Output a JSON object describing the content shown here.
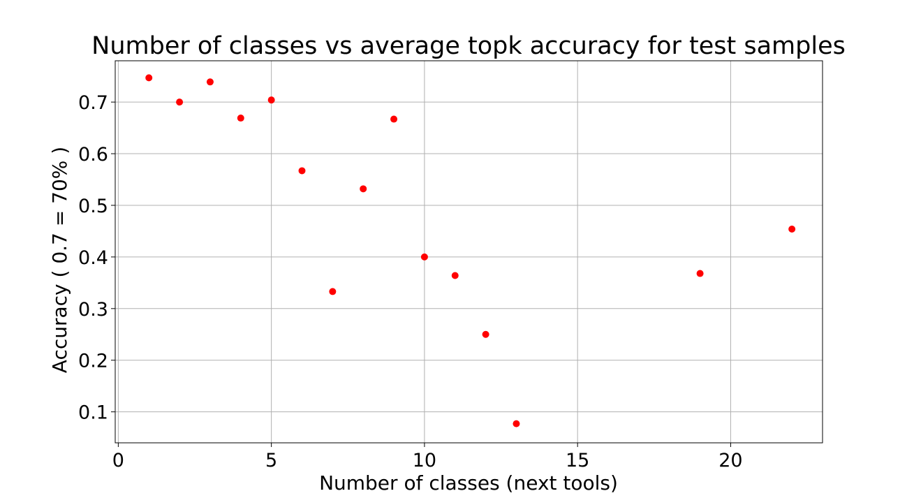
{
  "chart_data": {
    "type": "scatter",
    "title": "Number of classes vs average topk accuracy for test samples",
    "xlabel": "Number of classes (next tools)",
    "ylabel": "Accuracy ( 0.7 = 70% )",
    "xlim": [
      -0.1,
      23
    ],
    "ylim": [
      0.04,
      0.78
    ],
    "xticks": [
      0,
      5,
      10,
      15,
      20
    ],
    "yticks": [
      0.1,
      0.2,
      0.3,
      0.4,
      0.5,
      0.6,
      0.7
    ],
    "grid": true,
    "marker_color": "#ff0000",
    "points": [
      {
        "x": 1,
        "y": 0.747
      },
      {
        "x": 2,
        "y": 0.7
      },
      {
        "x": 3,
        "y": 0.739
      },
      {
        "x": 4,
        "y": 0.669
      },
      {
        "x": 5,
        "y": 0.704
      },
      {
        "x": 6,
        "y": 0.567
      },
      {
        "x": 7,
        "y": 0.333
      },
      {
        "x": 8,
        "y": 0.532
      },
      {
        "x": 9,
        "y": 0.667
      },
      {
        "x": 10,
        "y": 0.4
      },
      {
        "x": 11,
        "y": 0.364
      },
      {
        "x": 12,
        "y": 0.25
      },
      {
        "x": 13,
        "y": 0.077
      },
      {
        "x": 19,
        "y": 0.368
      },
      {
        "x": 22,
        "y": 0.454
      }
    ]
  }
}
